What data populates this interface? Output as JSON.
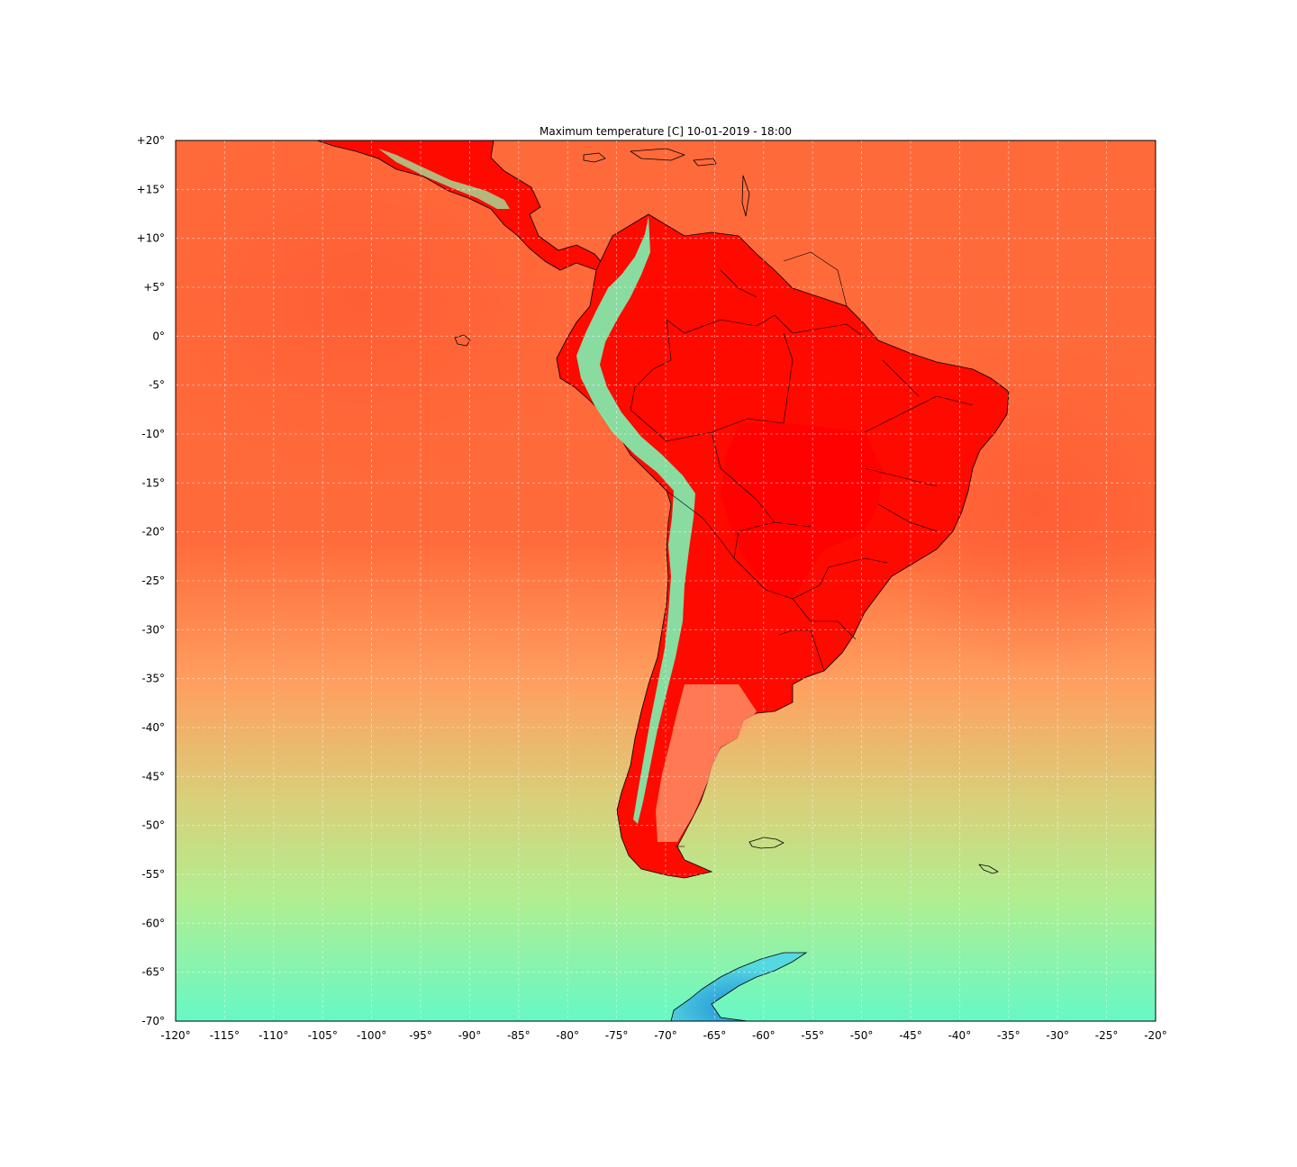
{
  "map": {
    "title": "Maximum temperature [C] 10-01-2019 - 18:00",
    "projection": "equirectangular",
    "extent": {
      "lon": [
        -120,
        -20
      ],
      "lat": [
        -70,
        20
      ]
    },
    "grid_spacing_deg": 5,
    "x_ticks": [
      "-120°",
      "-115°",
      "-110°",
      "-105°",
      "-100°",
      "-95°",
      "-90°",
      "-85°",
      "-80°",
      "-75°",
      "-70°",
      "-65°",
      "-60°",
      "-55°",
      "-50°",
      "-45°",
      "-40°",
      "-35°",
      "-30°",
      "-25°",
      "-20°"
    ],
    "y_ticks": [
      "+20°",
      "+15°",
      "+10°",
      "+5°",
      "0°",
      "-5°",
      "-10°",
      "-15°",
      "-20°",
      "-25°",
      "-30°",
      "-35°",
      "-40°",
      "-45°",
      "-50°",
      "-55°",
      "-60°",
      "-65°",
      "-70°"
    ],
    "colormap": {
      "name": "rainbow-like",
      "stops": [
        "#1e90d8",
        "#5ff5c8",
        "#b8ee8c",
        "#f0b46a",
        "#ff7a40",
        "#ff0000"
      ]
    },
    "colors": {
      "ocean_tropical": "#ff6a3a",
      "ocean_subtropical": "#ffa060",
      "ocean_midlat": "#d8d07a",
      "ocean_southern": "#b2ee90",
      "ocean_polar": "#66f8c6",
      "land_hot": "#ff0a00",
      "andes": "#7cf2b0",
      "antarctica_cold": "#2aa0e4"
    }
  }
}
